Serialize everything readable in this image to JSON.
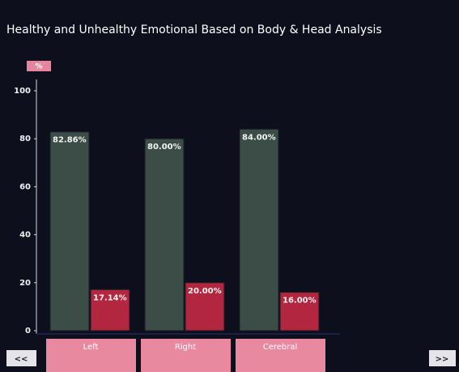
{
  "chart_data": {
    "type": "bar",
    "title": "Healthy and Unhealthy Emotional Based on Body & Head Analysis",
    "y_label": "%",
    "categories": [
      "Left",
      "Right",
      "Cerebral"
    ],
    "series": [
      {
        "color": "#3c4c47",
        "values": [
          82.86,
          80.0,
          84.0
        ],
        "value_labels": [
          "82.86%",
          "80.00%",
          "84.00%"
        ]
      },
      {
        "color": "#b3263f",
        "values": [
          17.14,
          20.0,
          16.0
        ],
        "value_labels": [
          "17.14%",
          "20.00%",
          "16.00%"
        ]
      }
    ],
    "ylim": [
      0,
      100
    ],
    "yticks": [
      0,
      20,
      40,
      60,
      80,
      100
    ],
    "nav_prev": "<<",
    "nav_next": ">>"
  }
}
